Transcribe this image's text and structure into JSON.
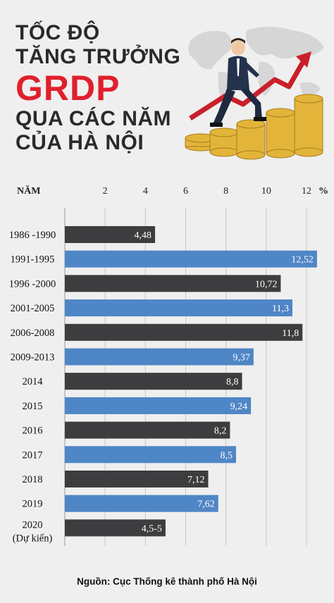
{
  "title": {
    "line1": "TỐC ĐỘ",
    "line2": "TĂNG TRƯỞNG",
    "line3": "GRDP",
    "line4": "QUA CÁC NĂM",
    "line5": "CỦA HÀ NỘI"
  },
  "colors": {
    "dark_bar": "#3d3d3f",
    "blue_bar": "#4f86c6",
    "accent_red": "#e0202c",
    "coin": "#e2b43a"
  },
  "illustration": {
    "icons": [
      "world-map-icon",
      "businessman-icon",
      "rising-arrow-icon",
      "coin-stack-icon"
    ]
  },
  "chart_data": {
    "type": "bar",
    "orientation": "horizontal",
    "xlabel": "%",
    "category_header": "NĂM",
    "xlim": [
      0,
      13
    ],
    "xticks": [
      2,
      4,
      6,
      8,
      10,
      12
    ],
    "grid": true,
    "categories": [
      "1986 -1990",
      "1991-1995",
      "1996 -2000",
      "2001-2005",
      "2006-2008",
      "2009-2013",
      "2014",
      "2015",
      "2016",
      "2017",
      "2018",
      "2019",
      "2020"
    ],
    "category_notes": [
      "",
      "",
      "",
      "",
      "",
      "",
      "",
      "",
      "",
      "",
      "",
      "",
      "(Dự kiến)"
    ],
    "values": [
      4.48,
      12.52,
      10.72,
      11.3,
      11.8,
      9.37,
      8.8,
      9.24,
      8.2,
      8.5,
      7.12,
      7.62,
      5.0
    ],
    "value_labels": [
      "4,48",
      "12,52",
      "10,72",
      "11,3",
      "11,8",
      "9,37",
      "8,8",
      "9,24",
      "8,2",
      "8,5",
      "7,12",
      "7,62",
      "4,5-5"
    ],
    "bar_colors": [
      "dark",
      "blue",
      "dark",
      "blue",
      "dark",
      "blue",
      "dark",
      "blue",
      "dark",
      "blue",
      "dark",
      "blue",
      "dark"
    ]
  },
  "source": "Nguồn: Cục Thống kê thành phố Hà Nội"
}
